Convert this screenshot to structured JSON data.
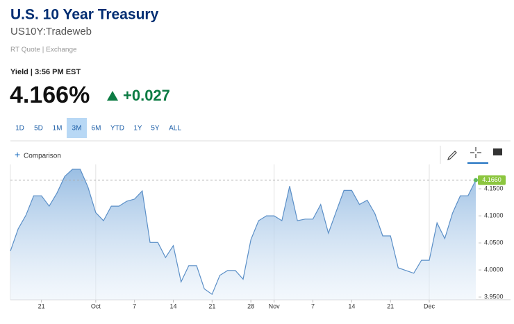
{
  "header": {
    "title": "U.S. 10 Year Treasury",
    "symbol": "US10Y:Tradeweb",
    "quote_type": "RT Quote | Exchange",
    "time": "Yield | 3:56 PM EST",
    "price": "4.166%",
    "change": "+0.027"
  },
  "ranges": [
    "1D",
    "5D",
    "1M",
    "3M",
    "6M",
    "YTD",
    "1Y",
    "5Y",
    "ALL"
  ],
  "selected_range": "3M",
  "comparison": "Comparison",
  "chart_data": {
    "type": "area",
    "categories": [
      null,
      null,
      null,
      null,
      "21",
      null,
      null,
      null,
      null,
      null,
      null,
      "Oct",
      null,
      null,
      null,
      null,
      "7",
      null,
      null,
      null,
      null,
      "14",
      null,
      null,
      null,
      null,
      "21",
      null,
      null,
      null,
      null,
      "28",
      null,
      null,
      "Nov",
      null,
      null,
      null,
      null,
      "7",
      null,
      null,
      null,
      null,
      "14",
      null,
      null,
      null,
      null,
      "21",
      null,
      null,
      null,
      null,
      "Dec",
      null,
      null,
      null,
      null,
      null,
      null
    ],
    "series": [
      {
        "color": "#5b8fc7",
        "values": [
          4.035,
          4.076,
          4.101,
          4.137,
          4.137,
          4.118,
          4.142,
          4.173,
          4.186,
          4.186,
          4.153,
          4.106,
          4.091,
          4.118,
          4.118,
          4.127,
          4.131,
          4.146,
          4.051,
          4.051,
          4.023,
          4.045,
          3.978,
          4.008,
          4.008,
          3.965,
          3.955,
          3.99,
          3.999,
          3.999,
          3.983,
          4.056,
          4.091,
          4.1,
          4.1,
          4.091,
          4.155,
          4.091,
          4.094,
          4.094,
          4.121,
          4.068,
          4.108,
          4.147,
          4.147,
          4.121,
          4.129,
          4.104,
          4.063,
          4.063,
          4.004,
          3.999,
          3.994,
          4.018,
          4.018,
          4.087,
          4.058,
          4.105,
          4.137,
          4.137,
          4.166
        ]
      }
    ],
    "last_value": {
      "value": 4.166,
      "label": "4.1660"
    },
    "ylim": [
      3.945,
      4.195
    ],
    "yticks": [
      {
        "value": 3.95,
        "label": "3.9500"
      },
      {
        "value": 4.0,
        "label": "4.0000"
      },
      {
        "value": 4.05,
        "label": "4.0500"
      },
      {
        "value": 4.1,
        "label": "4.1000"
      },
      {
        "value": 4.15,
        "label": "4.1500"
      }
    ]
  }
}
